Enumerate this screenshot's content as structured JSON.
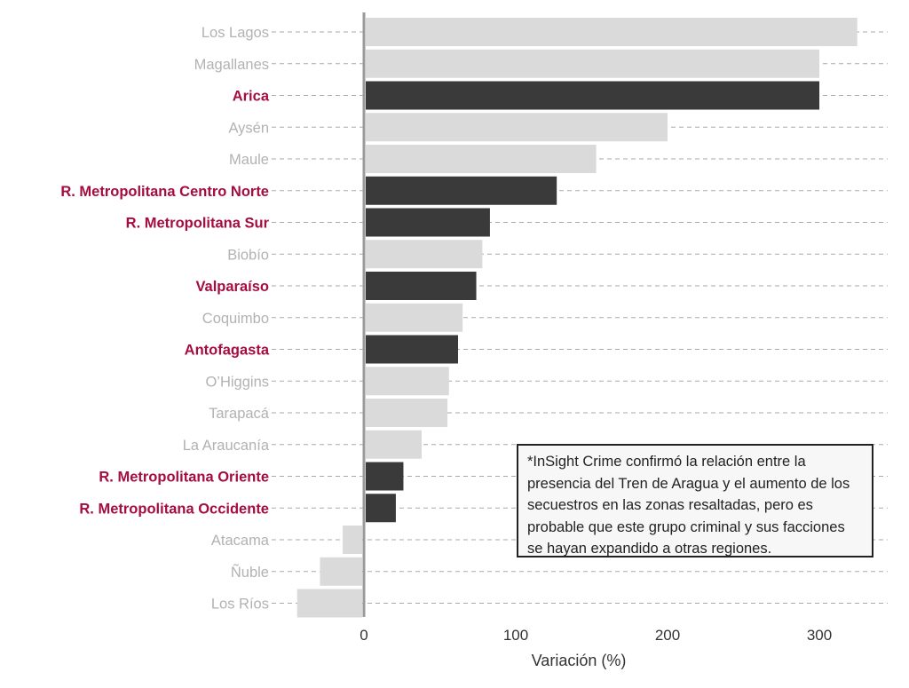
{
  "chart_data": {
    "type": "bar",
    "orientation": "horizontal",
    "categories": [
      "Los Lagos",
      "Magallanes",
      "Arica",
      "Aysén",
      "Maule",
      "R. Metropolitana Centro Norte",
      "R. Metropolitana Sur",
      "Biobío",
      "Valparaíso",
      "Coquimbo",
      "Antofagasta",
      "O’Higgins",
      "Tarapacá",
      "La Araucanía",
      "R. Metropolitana Oriente",
      "R. Metropolitana Occidente",
      "Atacama",
      "Ñuble",
      "Los Ríos"
    ],
    "values": [
      325,
      300,
      300,
      200,
      153,
      127,
      83,
      78,
      74,
      65,
      62,
      56,
      55,
      38,
      26,
      21,
      -14,
      -29,
      -44
    ],
    "highlighted": [
      false,
      false,
      true,
      false,
      false,
      true,
      true,
      false,
      true,
      false,
      true,
      false,
      false,
      false,
      true,
      true,
      false,
      false,
      false
    ],
    "xlabel": "Variación (%)",
    "ylabel": "",
    "xlim": [
      -50,
      345
    ],
    "xticks": [
      0,
      100,
      200,
      300
    ],
    "grid": "horizontal dashed",
    "colors": {
      "highlight_bar": "#3a3a3a",
      "default_bar": "#dadada",
      "highlight_label": "#a50d3f",
      "default_label": "#b2b2b2",
      "zero_line": "#999999",
      "grid": "#aaaaaa",
      "tick_label": "#333333"
    }
  },
  "note": {
    "text": "*InSight Crime confirmó la relación entre la presencia del Tren de Aragua y el aumento de los secuestros en las zonas resaltadas, pero es probable que este grupo criminal y sus facciones se hayan expandido a otras regiones."
  }
}
